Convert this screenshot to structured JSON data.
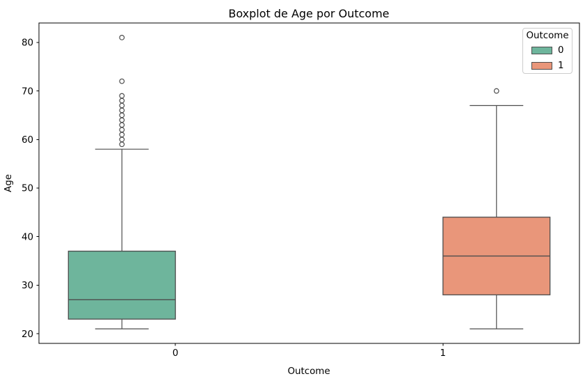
{
  "chart_data": {
    "type": "boxplot",
    "title": "Boxplot de Age por Outcome",
    "xlabel": "Outcome",
    "ylabel": "Age",
    "categories": [
      "0",
      "1"
    ],
    "y_ticks": [
      20,
      30,
      40,
      50,
      60,
      70,
      80
    ],
    "ylim": [
      18,
      84
    ],
    "xlim": [
      -0.51,
      1.51
    ],
    "grid": false,
    "edge_color": "#4d4d4d",
    "spine_color": "#000000",
    "legend": {
      "title": "Outcome",
      "position": "upper right"
    },
    "series": [
      {
        "name": "0",
        "category": "0",
        "color": "#6eb59c",
        "whisker_low": 21,
        "q1": 23,
        "median": 27,
        "q3": 37,
        "whisker_high": 58,
        "outliers": [
          59,
          60,
          61,
          62,
          63,
          64,
          65,
          66,
          67,
          68,
          69,
          72,
          81
        ]
      },
      {
        "name": "1",
        "category": "1",
        "color": "#e9967a",
        "whisker_low": 21,
        "q1": 28,
        "median": 36,
        "q3": 44,
        "whisker_high": 67,
        "outliers": [
          70
        ]
      }
    ]
  }
}
